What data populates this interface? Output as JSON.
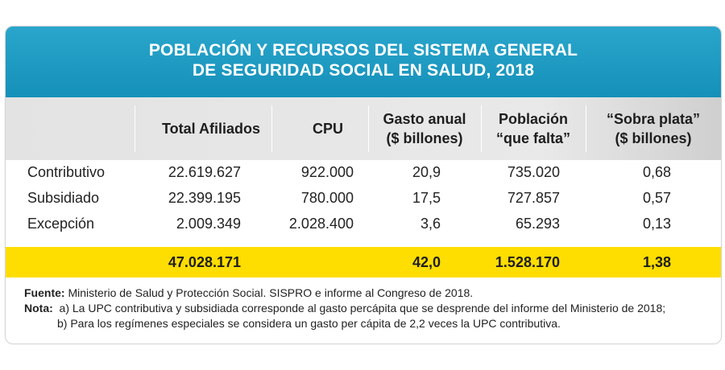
{
  "title": {
    "line1": "POBLACIÓN Y RECURSOS DEL SISTEMA GENERAL",
    "line2": "DE SEGURIDAD SOCIAL EN SALUD, 2018"
  },
  "columns": [
    {
      "line1": "Total Afiliados",
      "line2": ""
    },
    {
      "line1": "CPU",
      "line2": ""
    },
    {
      "line1": "Gasto anual",
      "line2": "($ billones)"
    },
    {
      "line1": "Población",
      "line2": "“que falta”"
    },
    {
      "line1": "“Sobra plata”",
      "line2": "($ billones)"
    }
  ],
  "rows": [
    {
      "label": "Contributivo",
      "values": [
        "22.619.627",
        "922.000",
        "20,9",
        "735.020",
        "0,68"
      ]
    },
    {
      "label": "Subsidiado",
      "values": [
        "22.399.195",
        "780.000",
        "17,5",
        "727.857",
        "0,57"
      ]
    },
    {
      "label": "Excepción",
      "values": [
        "2.009.349",
        "2.028.400",
        "3,6",
        "65.293",
        "0,13"
      ]
    }
  ],
  "totals": [
    "47.028.171",
    "",
    "42,0",
    "1.528.170",
    "1,38"
  ],
  "footer": {
    "source_label": "Fuente:",
    "source_text": " Ministerio de Salud y Protección Social. SISPRO e informe al Congreso de 2018.",
    "note_label": "Nota:",
    "note_a": "  a) La UPC contributiva y subsidiada corresponde al gasto percápita que se desprende del informe del Ministerio de 2018;",
    "note_b": "b) Para los regímenes especiales se considera un gasto per cápita de 2,2 veces la UPC contributiva."
  },
  "colors": {
    "title_bar": "#1e9cc6",
    "header_bg": "#e6e6e6",
    "total_bar": "#fedd00"
  }
}
